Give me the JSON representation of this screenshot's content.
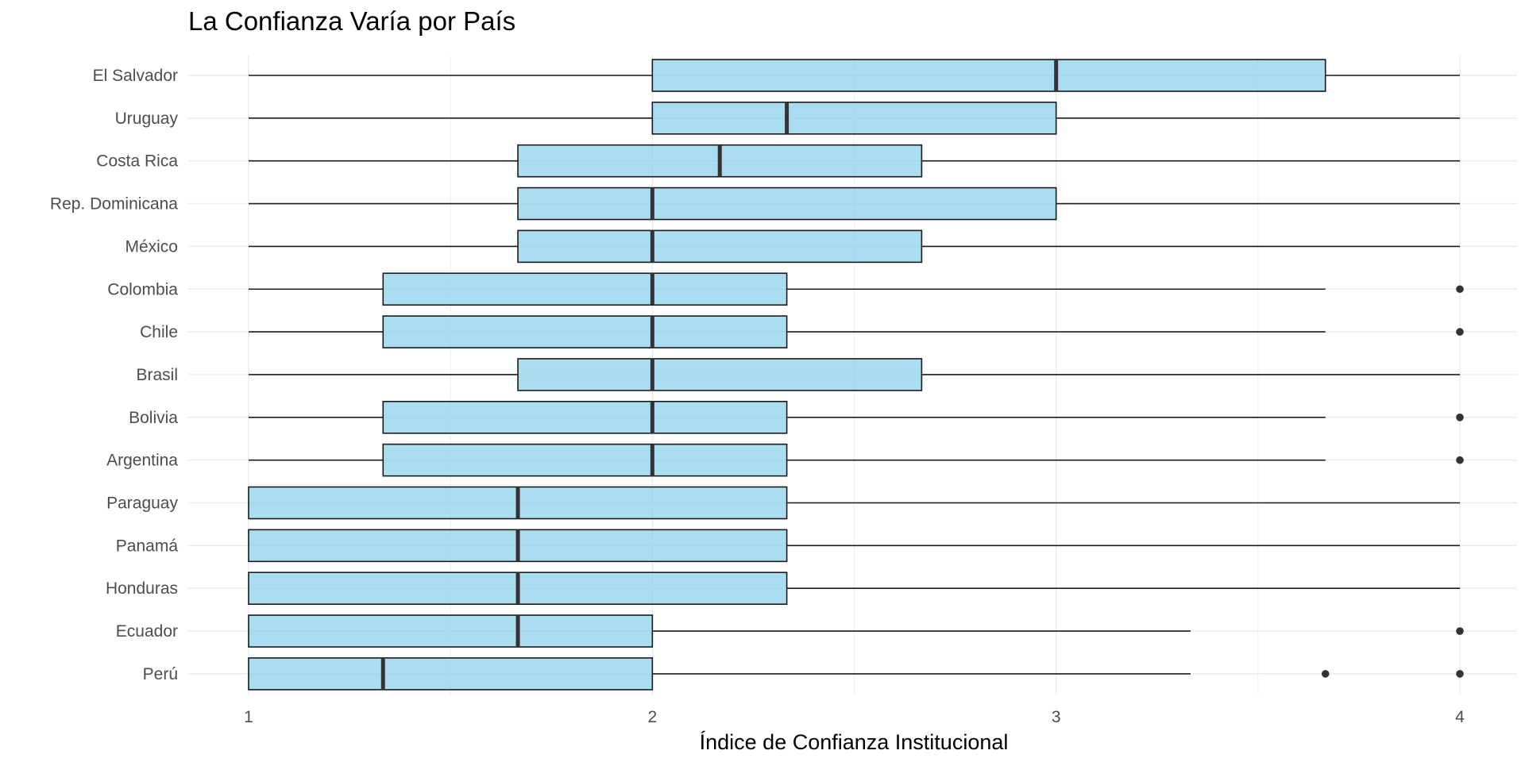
{
  "chart_data": {
    "type": "boxplot",
    "title": "La Confianza Varía por País",
    "xlabel": "Índice de Confianza Institucional",
    "ylabel": "",
    "xlim": [
      0.85,
      4.15
    ],
    "xticks": [
      1,
      2,
      3,
      4
    ],
    "grid": true,
    "legend": "none",
    "colors": {
      "box_fill": "#87CEEB",
      "box_stroke": "#1a1a1a",
      "median": "#333333",
      "whisker": "#1a1a1a",
      "outlier": "#333333",
      "grid": "#ebebeb"
    },
    "categories": [
      "El Salvador",
      "Uruguay",
      "Costa Rica",
      "Rep. Dominicana",
      "México",
      "Colombia",
      "Chile",
      "Brasil",
      "Bolivia",
      "Argentina",
      "Paraguay",
      "Panamá",
      "Honduras",
      "Ecuador",
      "Perú"
    ],
    "boxes": [
      {
        "category": "El Salvador",
        "whisker_low": 1,
        "q1": 2,
        "median": 3,
        "q3": 3.667,
        "whisker_high": 4,
        "outliers": []
      },
      {
        "category": "Uruguay",
        "whisker_low": 1,
        "q1": 2,
        "median": 2.333,
        "q3": 3,
        "whisker_high": 4,
        "outliers": []
      },
      {
        "category": "Costa Rica",
        "whisker_low": 1,
        "q1": 1.667,
        "median": 2.167,
        "q3": 2.667,
        "whisker_high": 4,
        "outliers": []
      },
      {
        "category": "Rep. Dominicana",
        "whisker_low": 1,
        "q1": 1.667,
        "median": 2,
        "q3": 3,
        "whisker_high": 4,
        "outliers": []
      },
      {
        "category": "México",
        "whisker_low": 1,
        "q1": 1.667,
        "median": 2,
        "q3": 2.667,
        "whisker_high": 4,
        "outliers": []
      },
      {
        "category": "Colombia",
        "whisker_low": 1,
        "q1": 1.333,
        "median": 2,
        "q3": 2.333,
        "whisker_high": 3.667,
        "outliers": [
          4
        ]
      },
      {
        "category": "Chile",
        "whisker_low": 1,
        "q1": 1.333,
        "median": 2,
        "q3": 2.333,
        "whisker_high": 3.667,
        "outliers": [
          4
        ]
      },
      {
        "category": "Brasil",
        "whisker_low": 1,
        "q1": 1.667,
        "median": 2,
        "q3": 2.667,
        "whisker_high": 4,
        "outliers": []
      },
      {
        "category": "Bolivia",
        "whisker_low": 1,
        "q1": 1.333,
        "median": 2,
        "q3": 2.333,
        "whisker_high": 3.667,
        "outliers": [
          4
        ]
      },
      {
        "category": "Argentina",
        "whisker_low": 1,
        "q1": 1.333,
        "median": 2,
        "q3": 2.333,
        "whisker_high": 3.667,
        "outliers": [
          4
        ]
      },
      {
        "category": "Paraguay",
        "whisker_low": 1,
        "q1": 1,
        "median": 1.667,
        "q3": 2.333,
        "whisker_high": 4,
        "outliers": []
      },
      {
        "category": "Panamá",
        "whisker_low": 1,
        "q1": 1,
        "median": 1.667,
        "q3": 2.333,
        "whisker_high": 4,
        "outliers": []
      },
      {
        "category": "Honduras",
        "whisker_low": 1,
        "q1": 1,
        "median": 1.667,
        "q3": 2.333,
        "whisker_high": 4,
        "outliers": []
      },
      {
        "category": "Ecuador",
        "whisker_low": 1,
        "q1": 1,
        "median": 1.667,
        "q3": 2,
        "whisker_high": 3.333,
        "outliers": [
          4
        ]
      },
      {
        "category": "Perú",
        "whisker_low": 1,
        "q1": 1,
        "median": 1.333,
        "q3": 2,
        "whisker_high": 3.333,
        "outliers": [
          3.667,
          4
        ]
      }
    ]
  }
}
